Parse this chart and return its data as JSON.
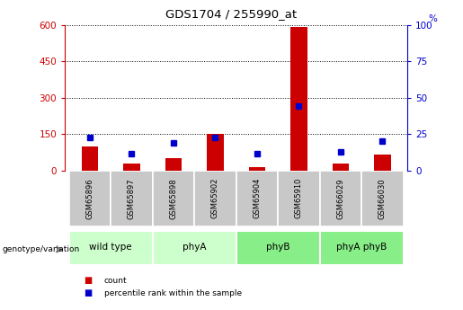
{
  "title": "GDS1704 / 255990_at",
  "samples": [
    "GSM65896",
    "GSM65897",
    "GSM65898",
    "GSM65902",
    "GSM65904",
    "GSM65910",
    "GSM66029",
    "GSM66030"
  ],
  "counts": [
    100,
    30,
    50,
    150,
    15,
    590,
    30,
    65
  ],
  "percentile_ranks_left": [
    135,
    70,
    115,
    135,
    70,
    265,
    75,
    120
  ],
  "groups": [
    {
      "label": "wild type",
      "start": 0,
      "end": 2,
      "color": "#ccffcc"
    },
    {
      "label": "phyA",
      "start": 2,
      "end": 4,
      "color": "#ccffcc"
    },
    {
      "label": "phyB",
      "start": 4,
      "end": 6,
      "color": "#88ee88"
    },
    {
      "label": "phyA phyB",
      "start": 6,
      "end": 8,
      "color": "#88ee88"
    }
  ],
  "ylim_left": [
    0,
    600
  ],
  "ylim_right": [
    0,
    100
  ],
  "yticks_left": [
    0,
    150,
    300,
    450,
    600
  ],
  "yticks_right": [
    0,
    25,
    50,
    75,
    100
  ],
  "left_axis_color": "#cc0000",
  "right_axis_color": "#0000cc",
  "bar_color_red": "#cc0000",
  "bar_color_blue": "#0000cc",
  "grid_color": "#000000",
  "sample_box_color": "#c8c8c8",
  "legend_count_label": "count",
  "legend_pct_label": "percentile rank within the sample",
  "genotype_label": "genotype/variation"
}
